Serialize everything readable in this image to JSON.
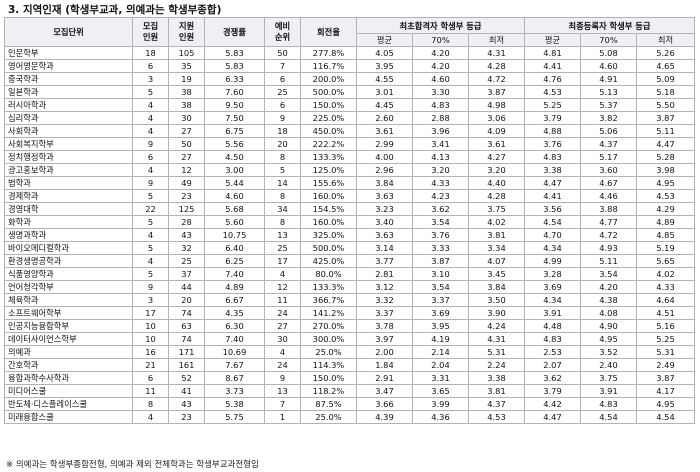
{
  "title": "3. 지역인재 (학생부교과, 의예과는 학생부종합)",
  "headers": {
    "unit": "모집단위",
    "recruit": "모집\n인원",
    "applicants": "지원\n인원",
    "ratio": "경쟁률",
    "waitlist": "예비\n순위",
    "fill_rate": "회전율",
    "first_pass": "최초합격자 학생부 등급",
    "final_reg": "최종등록자 학생부 등급",
    "sub_first": [
      "평균",
      "70%",
      "최저"
    ],
    "sub_final": [
      "평균",
      "70%",
      "최저"
    ]
  },
  "rows": [
    [
      "인문학부",
      "18",
      "105",
      "5.83",
      "50",
      "277.8%",
      "4.05",
      "4.20",
      "4.31",
      "4.81",
      "5.08",
      "5.26"
    ],
    [
      "영어영문학과",
      "6",
      "35",
      "5.83",
      "7",
      "116.7%",
      "3.95",
      "4.20",
      "4.28",
      "4.41",
      "4.60",
      "4.65"
    ],
    [
      "중국학과",
      "3",
      "19",
      "6.33",
      "6",
      "200.0%",
      "4.55",
      "4.60",
      "4.72",
      "4.76",
      "4.91",
      "5.09"
    ],
    [
      "일본학과",
      "5",
      "38",
      "7.60",
      "25",
      "500.0%",
      "3.01",
      "3.30",
      "3.87",
      "4.53",
      "5.13",
      "5.18"
    ],
    [
      "러시아학과",
      "4",
      "38",
      "9.50",
      "6",
      "150.0%",
      "4.45",
      "4.83",
      "4.98",
      "5.25",
      "5.37",
      "5.50"
    ],
    [
      "심리학과",
      "4",
      "30",
      "7.50",
      "9",
      "225.0%",
      "2.60",
      "2.88",
      "3.06",
      "3.79",
      "3.82",
      "3.87"
    ],
    [
      "사회학과",
      "4",
      "27",
      "6.75",
      "18",
      "450.0%",
      "3.61",
      "3.96",
      "4.09",
      "4.88",
      "5.06",
      "5.11"
    ],
    [
      "사회복지학부",
      "9",
      "50",
      "5.56",
      "20",
      "222.2%",
      "2.99",
      "3.41",
      "3.61",
      "3.76",
      "4.37",
      "4.47"
    ],
    [
      "정치행정학과",
      "6",
      "27",
      "4.50",
      "8",
      "133.3%",
      "4.00",
      "4.13",
      "4.27",
      "4.83",
      "5.17",
      "5.28"
    ],
    [
      "광고홍보학과",
      "4",
      "12",
      "3.00",
      "5",
      "125.0%",
      "2.96",
      "3.20",
      "3.20",
      "3.38",
      "3.60",
      "3.98"
    ],
    [
      "법학과",
      "9",
      "49",
      "5.44",
      "14",
      "155.6%",
      "3.84",
      "4.33",
      "4.40",
      "4.47",
      "4.67",
      "4.95"
    ],
    [
      "경제학과",
      "5",
      "23",
      "4.60",
      "8",
      "160.0%",
      "3.63",
      "4.23",
      "4.28",
      "4.41",
      "4.46",
      "4.53"
    ],
    [
      "경영대학",
      "22",
      "125",
      "5.68",
      "34",
      "154.5%",
      "3.23",
      "3.62",
      "3.75",
      "3.56",
      "3.88",
      "4.29"
    ],
    [
      "화학과",
      "5",
      "28",
      "5.60",
      "8",
      "160.0%",
      "3.40",
      "3.54",
      "4.02",
      "4.54",
      "4.77",
      "4.89"
    ],
    [
      "생명과학과",
      "4",
      "43",
      "10.75",
      "13",
      "325.0%",
      "3.63",
      "3.76",
      "3.81",
      "4.70",
      "4.72",
      "4.85"
    ],
    [
      "바이오메디컬학과",
      "5",
      "32",
      "6.40",
      "25",
      "500.0%",
      "3.14",
      "3.33",
      "3.34",
      "4.34",
      "4.93",
      "5.19"
    ],
    [
      "환경생명공학과",
      "4",
      "25",
      "6.25",
      "17",
      "425.0%",
      "3.77",
      "3.87",
      "4.07",
      "4.99",
      "5.11",
      "5.65"
    ],
    [
      "식품영양학과",
      "5",
      "37",
      "7.40",
      "4",
      "80.0%",
      "2.81",
      "3.10",
      "3.45",
      "3.28",
      "3.54",
      "4.02"
    ],
    [
      "언어청각학부",
      "9",
      "44",
      "4.89",
      "12",
      "133.3%",
      "3.12",
      "3.54",
      "3.84",
      "3.69",
      "4.20",
      "4.33"
    ],
    [
      "체육학과",
      "3",
      "20",
      "6.67",
      "11",
      "366.7%",
      "3.32",
      "3.37",
      "3.50",
      "4.34",
      "4.38",
      "4.64"
    ],
    [
      "소프트웨어학부",
      "17",
      "74",
      "4.35",
      "24",
      "141.2%",
      "3.37",
      "3.69",
      "3.90",
      "3.91",
      "4.08",
      "4.51"
    ],
    [
      "인공지능융합학부",
      "10",
      "63",
      "6.30",
      "27",
      "270.0%",
      "3.78",
      "3.95",
      "4.24",
      "4.48",
      "4.90",
      "5.16"
    ],
    [
      "데이터사이언스학부",
      "10",
      "74",
      "7.40",
      "30",
      "300.0%",
      "3.97",
      "4.19",
      "4.31",
      "4.83",
      "4.95",
      "5.25"
    ],
    [
      "의예과",
      "16",
      "171",
      "10.69",
      "4",
      "25.0%",
      "2.00",
      "2.14",
      "5.31",
      "2.53",
      "3.52",
      "5.31"
    ],
    [
      "간호학과",
      "21",
      "161",
      "7.67",
      "24",
      "114.3%",
      "1.84",
      "2.04",
      "2.24",
      "2.07",
      "2.40",
      "2.49"
    ],
    [
      "융합과학수사학과",
      "6",
      "52",
      "8.67",
      "9",
      "150.0%",
      "2.91",
      "3.31",
      "3.38",
      "3.62",
      "3.75",
      "3.87"
    ],
    [
      "미디어스쿨",
      "11",
      "41",
      "3.73",
      "13",
      "118.2%",
      "3.47",
      "3.65",
      "3.81",
      "3.79",
      "3.91",
      "4.17"
    ],
    [
      "반도체·디스플레이스쿨",
      "8",
      "43",
      "5.38",
      "7",
      "87.5%",
      "3.66",
      "3.99",
      "4.37",
      "4.42",
      "4.83",
      "4.95"
    ],
    [
      "미래융합스쿨",
      "4",
      "23",
      "5.75",
      "1",
      "25.0%",
      "4.39",
      "4.36",
      "4.53",
      "4.47",
      "4.54",
      "4.54"
    ]
  ],
  "footnote": "※ 의예과는 학생부종합전형, 의예과 제외 전체학과는 학생부교과전형임"
}
